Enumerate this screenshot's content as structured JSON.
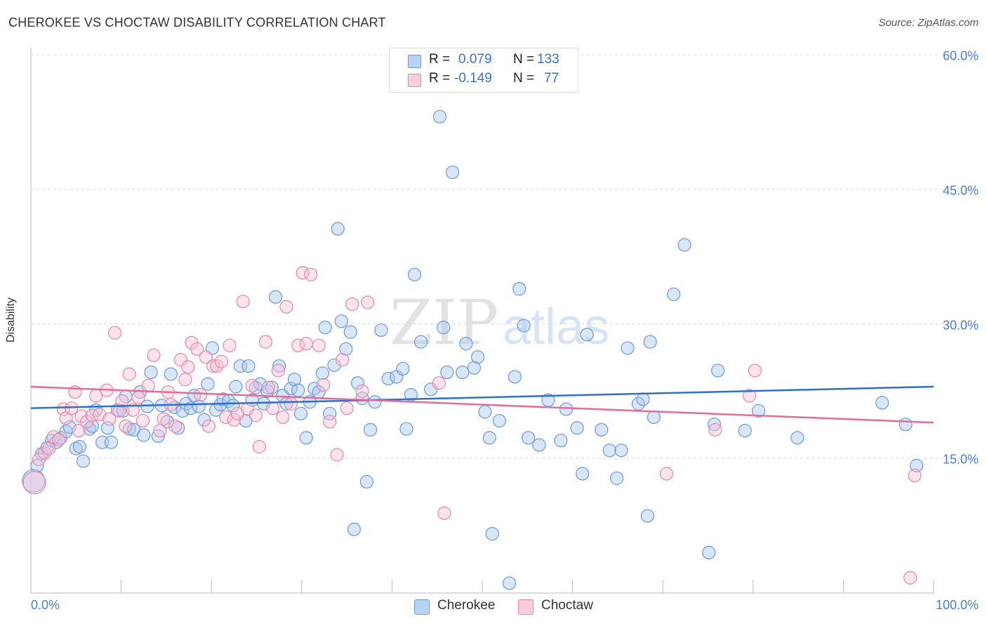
{
  "title": "CHEROKEE VS CHOCTAW DISABILITY CORRELATION CHART",
  "source": "Source: ZipAtlas.com",
  "watermark": {
    "zip": "ZIP",
    "atlas": "atlas"
  },
  "stats": [
    {
      "r_label": "R =",
      "r_value": "0.079",
      "n_label": "N =",
      "n_value": "133",
      "color": "#a8c8f0",
      "border": "#6a9ae0"
    },
    {
      "r_label": "R =",
      "r_value": "-0.149",
      "n_label": "N =",
      "n_value": "77",
      "color": "#f8c0d4",
      "border": "#e888a8"
    }
  ],
  "legend": [
    {
      "label": "Cherokee",
      "color": "#b8d2f4",
      "border": "#6a9ae0"
    },
    {
      "label": "Choctaw",
      "color": "#f9cddd",
      "border": "#e888a8"
    }
  ],
  "chart_data": {
    "type": "scatter",
    "xlabel": "",
    "ylabel": "Disability",
    "xlim": [
      0,
      100
    ],
    "ylim": [
      0,
      60
    ],
    "x_tick_labels": [
      "0.0%",
      "100.0%"
    ],
    "y_ticks": [
      15,
      30,
      45,
      60
    ],
    "y_tick_labels": [
      "15.0%",
      "30.0%",
      "45.0%",
      "60.0%"
    ],
    "grid": "horizontal dashed",
    "legend_position": "bottom-center",
    "series": [
      {
        "name": "Cherokee",
        "color": "#a8c8f0",
        "stroke": "#6a9ae0",
        "trend": {
          "x": [
            0,
            100
          ],
          "y": [
            20.6,
            23.0
          ],
          "color": "#2f6fd0"
        },
        "points": [
          [
            0.3,
            12.5
          ],
          [
            0.7,
            14.2
          ],
          [
            1.2,
            15.5
          ],
          [
            1.8,
            16.2
          ],
          [
            2.3,
            17.0
          ],
          [
            2.8,
            16.8
          ],
          [
            3.3,
            17.3
          ],
          [
            3.9,
            18.0
          ],
          [
            4.3,
            18.5
          ],
          [
            5.0,
            16.1
          ],
          [
            5.4,
            16.3
          ],
          [
            5.8,
            14.7
          ],
          [
            6.5,
            18.3
          ],
          [
            6.8,
            18.6
          ],
          [
            7.2,
            20.4
          ],
          [
            7.9,
            16.8
          ],
          [
            8.5,
            18.4
          ],
          [
            8.9,
            16.8
          ],
          [
            9.6,
            20.4
          ],
          [
            10.2,
            20.3
          ],
          [
            10.5,
            21.9
          ],
          [
            10.9,
            18.3
          ],
          [
            11.4,
            18.2
          ],
          [
            12.1,
            22.4
          ],
          [
            12.5,
            17.6
          ],
          [
            12.9,
            20.8
          ],
          [
            13.3,
            24.6
          ],
          [
            14.1,
            17.5
          ],
          [
            14.5,
            20.9
          ],
          [
            15.1,
            19.1
          ],
          [
            15.5,
            24.4
          ],
          [
            15.9,
            20.7
          ],
          [
            16.3,
            18.4
          ],
          [
            16.8,
            20.3
          ],
          [
            17.2,
            21.1
          ],
          [
            17.7,
            20.6
          ],
          [
            18.1,
            22.0
          ],
          [
            18.6,
            20.8
          ],
          [
            19.2,
            19.3
          ],
          [
            19.6,
            23.3
          ],
          [
            20.1,
            27.3
          ],
          [
            20.5,
            20.4
          ],
          [
            21.0,
            21.0
          ],
          [
            21.3,
            21.6
          ],
          [
            21.9,
            21.4
          ],
          [
            22.4,
            20.9
          ],
          [
            22.7,
            23.0
          ],
          [
            23.2,
            25.3
          ],
          [
            23.8,
            19.2
          ],
          [
            24.1,
            25.3
          ],
          [
            24.5,
            21.5
          ],
          [
            24.9,
            22.9
          ],
          [
            25.4,
            23.3
          ],
          [
            25.8,
            21.1
          ],
          [
            26.2,
            22.5
          ],
          [
            26.7,
            22.9
          ],
          [
            27.1,
            33.0
          ],
          [
            27.5,
            25.3
          ],
          [
            27.9,
            22.0
          ],
          [
            28.3,
            21.1
          ],
          [
            28.8,
            22.8
          ],
          [
            29.2,
            23.8
          ],
          [
            29.6,
            22.6
          ],
          [
            29.9,
            20.0
          ],
          [
            30.5,
            17.3
          ],
          [
            30.9,
            21.3
          ],
          [
            31.4,
            22.8
          ],
          [
            31.9,
            22.4
          ],
          [
            32.3,
            24.5
          ],
          [
            32.6,
            29.6
          ],
          [
            33.1,
            20.0
          ],
          [
            33.6,
            25.4
          ],
          [
            34.0,
            40.6
          ],
          [
            34.4,
            30.3
          ],
          [
            34.9,
            27.2
          ],
          [
            35.4,
            29.1
          ],
          [
            35.8,
            7.1
          ],
          [
            36.2,
            23.4
          ],
          [
            36.7,
            21.7
          ],
          [
            37.2,
            12.4
          ],
          [
            37.6,
            18.2
          ],
          [
            38.1,
            21.3
          ],
          [
            38.8,
            29.3
          ],
          [
            39.6,
            23.9
          ],
          [
            40.5,
            24.1
          ],
          [
            41.2,
            25.0
          ],
          [
            41.6,
            18.3
          ],
          [
            42.1,
            22.1
          ],
          [
            42.5,
            35.5
          ],
          [
            43.2,
            28.0
          ],
          [
            44.3,
            22.7
          ],
          [
            45.3,
            53.1
          ],
          [
            45.7,
            29.6
          ],
          [
            46.1,
            24.6
          ],
          [
            46.7,
            46.9
          ],
          [
            47.8,
            24.6
          ],
          [
            48.2,
            27.8
          ],
          [
            49.1,
            25.1
          ],
          [
            49.5,
            26.3
          ],
          [
            50.3,
            20.2
          ],
          [
            50.8,
            17.3
          ],
          [
            51.1,
            6.6
          ],
          [
            51.9,
            19.2
          ],
          [
            53.0,
            1.1
          ],
          [
            53.6,
            24.1
          ],
          [
            54.1,
            33.9
          ],
          [
            54.6,
            29.8
          ],
          [
            55.1,
            17.3
          ],
          [
            56.3,
            16.5
          ],
          [
            57.3,
            21.5
          ],
          [
            58.7,
            17.0
          ],
          [
            59.3,
            20.5
          ],
          [
            60.5,
            18.4
          ],
          [
            61.1,
            13.3
          ],
          [
            61.6,
            28.8
          ],
          [
            63.2,
            18.2
          ],
          [
            64.1,
            15.9
          ],
          [
            64.9,
            12.8
          ],
          [
            65.4,
            15.9
          ],
          [
            66.1,
            27.3
          ],
          [
            67.3,
            21.1
          ],
          [
            67.8,
            21.6
          ],
          [
            68.3,
            8.6
          ],
          [
            68.6,
            28.0
          ],
          [
            69.0,
            19.6
          ],
          [
            71.2,
            33.3
          ],
          [
            72.4,
            38.8
          ],
          [
            75.1,
            4.5
          ],
          [
            75.7,
            18.8
          ],
          [
            76.1,
            24.8
          ],
          [
            79.1,
            18.1
          ],
          [
            80.6,
            20.3
          ],
          [
            84.9,
            17.3
          ],
          [
            94.3,
            21.2
          ],
          [
            96.9,
            18.8
          ],
          [
            98.1,
            14.2
          ]
        ]
      },
      {
        "name": "Choctaw",
        "color": "#f8c0d4",
        "stroke": "#e888a8",
        "trend": {
          "x": [
            0,
            100
          ],
          "y": [
            23.0,
            19.0
          ],
          "color": "#e46c96"
        },
        "points": [
          [
            0.4,
            12.3
          ],
          [
            0.9,
            14.9
          ],
          [
            1.5,
            15.6
          ],
          [
            2.0,
            16.1
          ],
          [
            2.5,
            17.4
          ],
          [
            3.1,
            17.1
          ],
          [
            3.6,
            20.5
          ],
          [
            3.9,
            19.5
          ],
          [
            4.5,
            20.6
          ],
          [
            4.9,
            22.4
          ],
          [
            5.3,
            18.1
          ],
          [
            5.6,
            19.7
          ],
          [
            6.2,
            19.1
          ],
          [
            6.8,
            19.8
          ],
          [
            7.2,
            22.0
          ],
          [
            7.6,
            19.9
          ],
          [
            8.4,
            22.6
          ],
          [
            8.7,
            19.4
          ],
          [
            9.3,
            29.0
          ],
          [
            9.8,
            20.3
          ],
          [
            10.1,
            21.4
          ],
          [
            10.5,
            18.6
          ],
          [
            10.9,
            24.4
          ],
          [
            11.3,
            20.4
          ],
          [
            11.9,
            21.8
          ],
          [
            12.4,
            19.2
          ],
          [
            13.0,
            23.1
          ],
          [
            13.6,
            26.5
          ],
          [
            14.3,
            18.1
          ],
          [
            14.7,
            19.4
          ],
          [
            15.2,
            22.4
          ],
          [
            15.5,
            21.0
          ],
          [
            16.0,
            18.6
          ],
          [
            16.6,
            26.0
          ],
          [
            17.1,
            23.8
          ],
          [
            17.4,
            25.2
          ],
          [
            17.8,
            27.9
          ],
          [
            18.4,
            27.2
          ],
          [
            18.8,
            22.1
          ],
          [
            19.4,
            26.3
          ],
          [
            19.7,
            18.6
          ],
          [
            20.2,
            25.3
          ],
          [
            20.6,
            25.3
          ],
          [
            21.1,
            25.8
          ],
          [
            21.6,
            19.6
          ],
          [
            22.0,
            27.6
          ],
          [
            22.5,
            19.3
          ],
          [
            22.9,
            20.0
          ],
          [
            23.5,
            32.5
          ],
          [
            24.0,
            20.5
          ],
          [
            24.5,
            23.1
          ],
          [
            24.9,
            19.8
          ],
          [
            25.3,
            16.3
          ],
          [
            26.0,
            28.0
          ],
          [
            26.3,
            22.9
          ],
          [
            26.8,
            20.6
          ],
          [
            27.4,
            24.8
          ],
          [
            27.9,
            19.6
          ],
          [
            28.3,
            31.9
          ],
          [
            28.8,
            21.1
          ],
          [
            29.6,
            27.6
          ],
          [
            30.1,
            35.7
          ],
          [
            30.5,
            27.8
          ],
          [
            31.0,
            35.5
          ],
          [
            31.9,
            27.6
          ],
          [
            32.4,
            23.2
          ],
          [
            33.1,
            19.1
          ],
          [
            33.9,
            15.4
          ],
          [
            34.5,
            26.0
          ],
          [
            35.0,
            20.6
          ],
          [
            35.6,
            32.2
          ],
          [
            36.7,
            22.5
          ],
          [
            37.3,
            32.4
          ],
          [
            45.2,
            23.4
          ],
          [
            45.8,
            8.9
          ],
          [
            70.4,
            13.3
          ],
          [
            75.8,
            18.2
          ],
          [
            79.6,
            22.0
          ],
          [
            80.2,
            24.8
          ],
          [
            97.4,
            1.7
          ],
          [
            97.9,
            13.1
          ]
        ]
      }
    ]
  }
}
